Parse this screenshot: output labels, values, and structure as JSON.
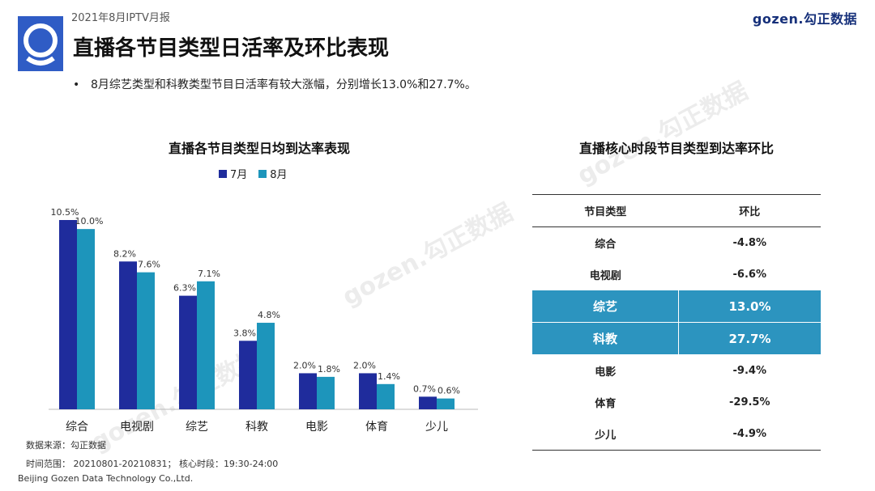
{
  "header": {
    "report_label": "2021年8月IPTV月报",
    "brand": "gozen.勾正数据",
    "title": "直播各节目类型日活率及环比表现",
    "bullet": "8月综艺类型和科教类型节目日活率有较大涨幅，分别增长13.0%和27.7%。"
  },
  "colors": {
    "july": "#1f2c9c",
    "august": "#1d95bb",
    "highlight_row": "#2c94bf",
    "logo_bg": "#2f5cc5"
  },
  "chart_data": {
    "type": "bar",
    "title": "直播各节目类型日均到达率表现",
    "categories": [
      "综合",
      "电视剧",
      "综艺",
      "科教",
      "电影",
      "体育",
      "少儿"
    ],
    "series": [
      {
        "name": "7月",
        "values": [
          10.5,
          8.2,
          6.3,
          3.8,
          2.0,
          2.0,
          0.7
        ],
        "labels": [
          "10.5%",
          "8.2%",
          "6.3%",
          "3.8%",
          "2.0%",
          "2.0%",
          "0.7%"
        ]
      },
      {
        "name": "8月",
        "values": [
          10.0,
          7.6,
          7.1,
          4.8,
          1.8,
          1.4,
          0.6
        ],
        "labels": [
          "10.0%",
          "7.6%",
          "7.1%",
          "4.8%",
          "1.8%",
          "1.4%",
          "0.6%"
        ]
      }
    ],
    "ylim": [
      0,
      11
    ],
    "legend": "top",
    "grid": false
  },
  "table": {
    "title": "直播核心时段节目类型到达率环比",
    "headers": [
      "节目类型",
      "环比"
    ],
    "rows": [
      {
        "type": "综合",
        "change": "-4.8%",
        "highlight": false
      },
      {
        "type": "电视剧",
        "change": "-6.6%",
        "highlight": false
      },
      {
        "type": "综艺",
        "change": "13.0%",
        "highlight": true
      },
      {
        "type": "科教",
        "change": "27.7%",
        "highlight": true
      },
      {
        "type": "电影",
        "change": "-9.4%",
        "highlight": false
      },
      {
        "type": "体育",
        "change": "-29.5%",
        "highlight": false
      },
      {
        "type": "少儿",
        "change": "-4.9%",
        "highlight": false
      }
    ]
  },
  "footer": {
    "source": "数据来源：勾正数据",
    "time_range": "时间范围： 20210801-20210831； 核心时段：19:30-24:00",
    "company": "Beijing Gozen Data Technology Co.,Ltd."
  }
}
